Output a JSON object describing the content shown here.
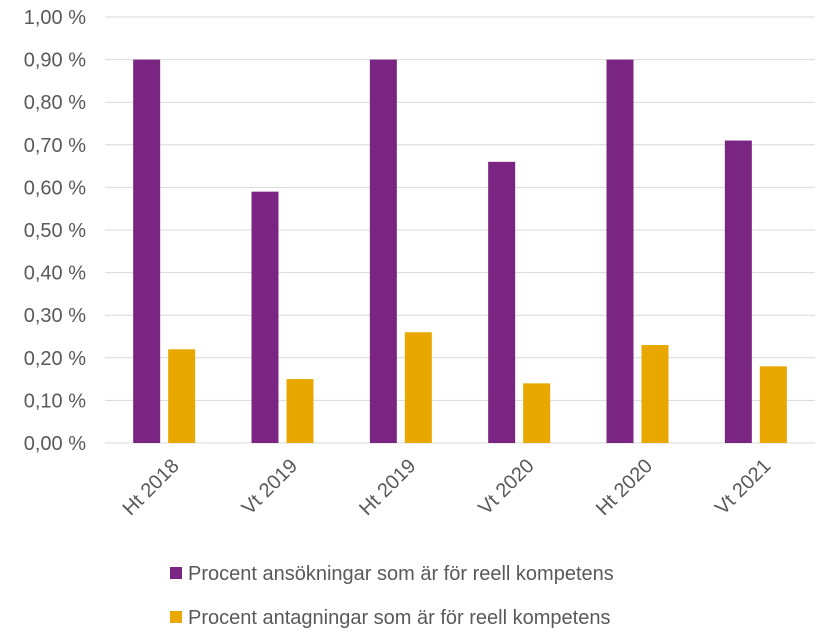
{
  "chart_data": {
    "type": "bar",
    "categories": [
      "Ht 2018",
      "Vt 2019",
      "Ht 2019",
      "Vt 2020",
      "Ht 2020",
      "Vt 2021"
    ],
    "series": [
      {
        "name": "Procent ansökningar som är för reell kompetens",
        "color": "#7b2583",
        "values": [
          0.9,
          0.59,
          0.9,
          0.66,
          0.9,
          0.71
        ]
      },
      {
        "name": "Procent antagningar som är för reell kompetens",
        "color": "#e8a800",
        "values": [
          0.22,
          0.15,
          0.26,
          0.14,
          0.23,
          0.18
        ]
      }
    ],
    "ylim": [
      0,
      1.0
    ],
    "yticks": [
      0,
      0.1,
      0.2,
      0.3,
      0.4,
      0.5,
      0.6,
      0.7,
      0.8,
      0.9,
      1.0
    ],
    "ytick_labels": [
      "0,00 %",
      "0,10 %",
      "0,20 %",
      "0,30 %",
      "0,40 %",
      "0,50 %",
      "0,60 %",
      "0,70 %",
      "0,80 %",
      "0,90 %",
      "1,00 %"
    ],
    "grid": true,
    "legend_position": "bottom",
    "gridline_color": "#d9d9d9",
    "label_color": "#595959"
  }
}
